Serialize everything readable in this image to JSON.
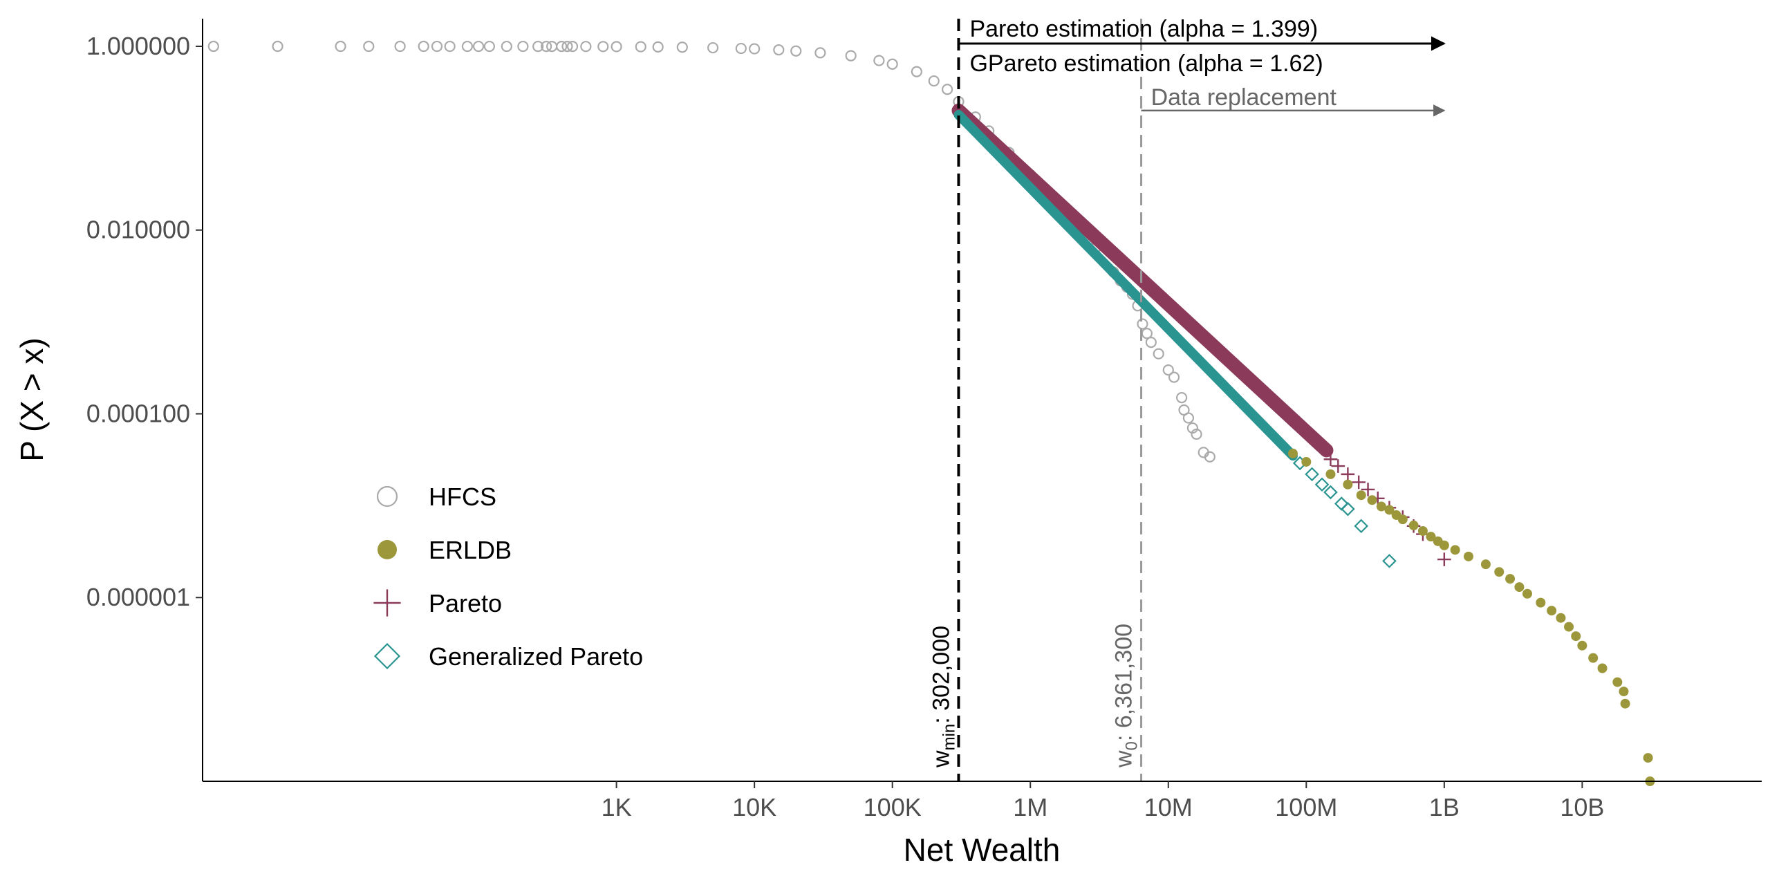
{
  "chart_data": {
    "type": "scatter",
    "xlabel": "Net Wealth",
    "ylabel": "P (X > x)",
    "x_scale": "log10",
    "y_scale": "log10",
    "xlim": [
      1,
      200000000000
    ],
    "ylim": [
      1e-08,
      2
    ],
    "x_ticks": [
      {
        "value": 1000,
        "label": "1K"
      },
      {
        "value": 10000,
        "label": "10K"
      },
      {
        "value": 100000,
        "label": "100K"
      },
      {
        "value": 1000000,
        "label": "1M"
      },
      {
        "value": 10000000,
        "label": "10M"
      },
      {
        "value": 100000000,
        "label": "100M"
      },
      {
        "value": 1000000000,
        "label": "1B"
      },
      {
        "value": 10000000000,
        "label": "10B"
      }
    ],
    "y_ticks": [
      {
        "value": 1,
        "label": "1.000000"
      },
      {
        "value": 0.01,
        "label": "0.010000"
      },
      {
        "value": 0.0001,
        "label": "0.000100"
      },
      {
        "value": 1e-06,
        "label": "0.000001"
      }
    ],
    "grid": false,
    "legend": {
      "position": "bottom-left inside",
      "entries": [
        {
          "name": "HFCS",
          "shape": "open-circle",
          "color": "#aaaaaa"
        },
        {
          "name": "ERLDB",
          "shape": "filled-circle",
          "color": "#9c973a"
        },
        {
          "name": "Pareto",
          "shape": "plus",
          "color": "#8b3a5a"
        },
        {
          "name": "Generalized Pareto",
          "shape": "open-diamond",
          "color": "#2a9490"
        }
      ]
    },
    "reference_lines": [
      {
        "x": 302000,
        "label_main": "w",
        "label_sub": "min",
        "label_value": ": 302,000",
        "color": "#000000",
        "style": "dashed"
      },
      {
        "x": 6361300,
        "label_main": "w",
        "label_sub": "0",
        "label_value": ": 6,361,300",
        "color": "#999999",
        "style": "dashed"
      }
    ],
    "annotations": [
      {
        "text": "Pareto estimation (alpha = 1.399)",
        "from_x": 302000,
        "to_x": 1000000000,
        "y": 1,
        "color": "#000000",
        "arrow": true
      },
      {
        "text": "GPareto estimation (alpha = 1.62)",
        "color": "#000000",
        "arrow": false
      },
      {
        "text": "Data replacement",
        "from_x": 6361300,
        "to_x": 1000000000,
        "y": 0.1,
        "color": "#666666",
        "arrow": true
      }
    ],
    "series": [
      {
        "name": "HFCS",
        "color": "#aaaaaa",
        "shape": "open-circle",
        "points": [
          [
            1.2,
            0.9999
          ],
          [
            3.5,
            0.9998
          ],
          [
            10,
            0.9997
          ],
          [
            16,
            0.9996
          ],
          [
            27,
            0.9995
          ],
          [
            40,
            0.9994
          ],
          [
            50,
            0.9993
          ],
          [
            62,
            0.9992
          ],
          [
            83,
            0.9991
          ],
          [
            100,
            0.999
          ],
          [
            120,
            0.9989
          ],
          [
            160,
            0.9988
          ],
          [
            210,
            0.9987
          ],
          [
            270,
            0.9985
          ],
          [
            310,
            0.9984
          ],
          [
            340,
            0.9983
          ],
          [
            400,
            0.998
          ],
          [
            440,
            0.9977
          ],
          [
            480,
            0.9974
          ],
          [
            600,
            0.9965
          ],
          [
            800,
            0.995
          ],
          [
            1000,
            0.993
          ],
          [
            1500,
            0.99
          ],
          [
            2000,
            0.985
          ],
          [
            3000,
            0.978
          ],
          [
            5000,
            0.965
          ],
          [
            8000,
            0.948
          ],
          [
            10000,
            0.94
          ],
          [
            15000,
            0.915
          ],
          [
            20000,
            0.89
          ],
          [
            30000,
            0.85
          ],
          [
            50000,
            0.79
          ],
          [
            80000,
            0.7
          ],
          [
            100000,
            0.64
          ],
          [
            150000,
            0.53
          ],
          [
            200000,
            0.42
          ],
          [
            250000,
            0.34
          ],
          [
            302000,
            0.25
          ],
          [
            400000,
            0.17
          ],
          [
            500000,
            0.12
          ],
          [
            700000,
            0.07
          ],
          [
            1000000,
            0.04
          ],
          [
            1500000,
            0.02
          ],
          [
            2000000,
            0.013
          ],
          [
            3000000,
            0.0065
          ],
          [
            4000000,
            0.0035
          ],
          [
            4500000,
            0.0028
          ],
          [
            5000000,
            0.0024
          ],
          [
            5500000,
            0.002
          ],
          [
            6000000,
            0.0015
          ],
          [
            6500000,
            0.00095
          ],
          [
            7000000,
            0.00075
          ],
          [
            7500000,
            0.0006
          ],
          [
            8500000,
            0.00045
          ],
          [
            10000000,
            0.0003
          ],
          [
            11000000,
            0.00025
          ],
          [
            12500000,
            0.00015
          ],
          [
            13000000,
            0.00011
          ],
          [
            14000000,
            9e-05
          ],
          [
            15000000,
            7e-05
          ],
          [
            16000000,
            6e-05
          ],
          [
            18000000,
            3.8e-05
          ],
          [
            20000000,
            3.4e-05
          ]
        ]
      },
      {
        "name": "Pareto",
        "color": "#8b3a5a",
        "shape": "plus",
        "line": {
          "from": [
            302000,
            0.2
          ],
          "to": [
            140000000,
            4e-05
          ]
        },
        "points": [
          [
            150000000,
            3.2e-05
          ],
          [
            170000000,
            2.7e-05
          ],
          [
            200000000,
            2.2e-05
          ],
          [
            240000000,
            1.8e-05
          ],
          [
            280000000,
            1.5e-05
          ],
          [
            330000000,
            1.2e-05
          ],
          [
            400000000,
            9.5e-06
          ],
          [
            500000000,
            7.5e-06
          ],
          [
            600000000,
            6e-06
          ],
          [
            700000000,
            4.9e-06
          ],
          [
            1000000000,
            2.6e-06
          ]
        ]
      },
      {
        "name": "Generalized Pareto",
        "color": "#2a9490",
        "shape": "open-diamond",
        "line": {
          "from": [
            302000,
            0.18
          ],
          "to": [
            80000000,
            3.5e-05
          ]
        },
        "points": [
          [
            90000000,
            2.9e-05
          ],
          [
            110000000,
            2.2e-05
          ],
          [
            130000000,
            1.7e-05
          ],
          [
            150000000,
            1.4e-05
          ],
          [
            180000000,
            1.05e-05
          ],
          [
            200000000,
            9.2e-06
          ],
          [
            250000000,
            6e-06
          ],
          [
            400000000,
            2.5e-06
          ]
        ]
      },
      {
        "name": "ERLDB",
        "color": "#9c973a",
        "shape": "filled-circle",
        "points": [
          [
            80000000,
            3.7e-05
          ],
          [
            100000000,
            3e-05
          ],
          [
            150000000,
            2.2e-05
          ],
          [
            200000000,
            1.7e-05
          ],
          [
            250000000,
            1.3e-05
          ],
          [
            300000000,
            1.15e-05
          ],
          [
            350000000,
            9.8e-06
          ],
          [
            400000000,
            9e-06
          ],
          [
            450000000,
            7.9e-06
          ],
          [
            500000000,
            7.1e-06
          ],
          [
            600000000,
            6.1e-06
          ],
          [
            700000000,
            5.3e-06
          ],
          [
            800000000,
            4.6e-06
          ],
          [
            900000000,
            4.1e-06
          ],
          [
            1000000000,
            3.7e-06
          ],
          [
            1200000000,
            3.3e-06
          ],
          [
            1500000000,
            2.8e-06
          ],
          [
            2000000000,
            2.3e-06
          ],
          [
            2500000000,
            1.9e-06
          ],
          [
            3000000000,
            1.6e-06
          ],
          [
            3500000000,
            1.3e-06
          ],
          [
            4000000000,
            1.1e-06
          ],
          [
            5000000000,
            8.8e-07
          ],
          [
            6000000000,
            7.2e-07
          ],
          [
            7000000000,
            6e-07
          ],
          [
            8000000000,
            4.8e-07
          ],
          [
            9000000000,
            3.8e-07
          ],
          [
            10000000000,
            3e-07
          ],
          [
            12000000000,
            2.2e-07
          ],
          [
            14000000000,
            1.7e-07
          ],
          [
            18000000000,
            1.2e-07
          ],
          [
            20000000000,
            9.5e-08
          ],
          [
            20500000000,
            7e-08
          ],
          [
            30000000000,
            1.8e-08
          ],
          [
            31000000000,
            1e-08
          ]
        ]
      }
    ]
  }
}
